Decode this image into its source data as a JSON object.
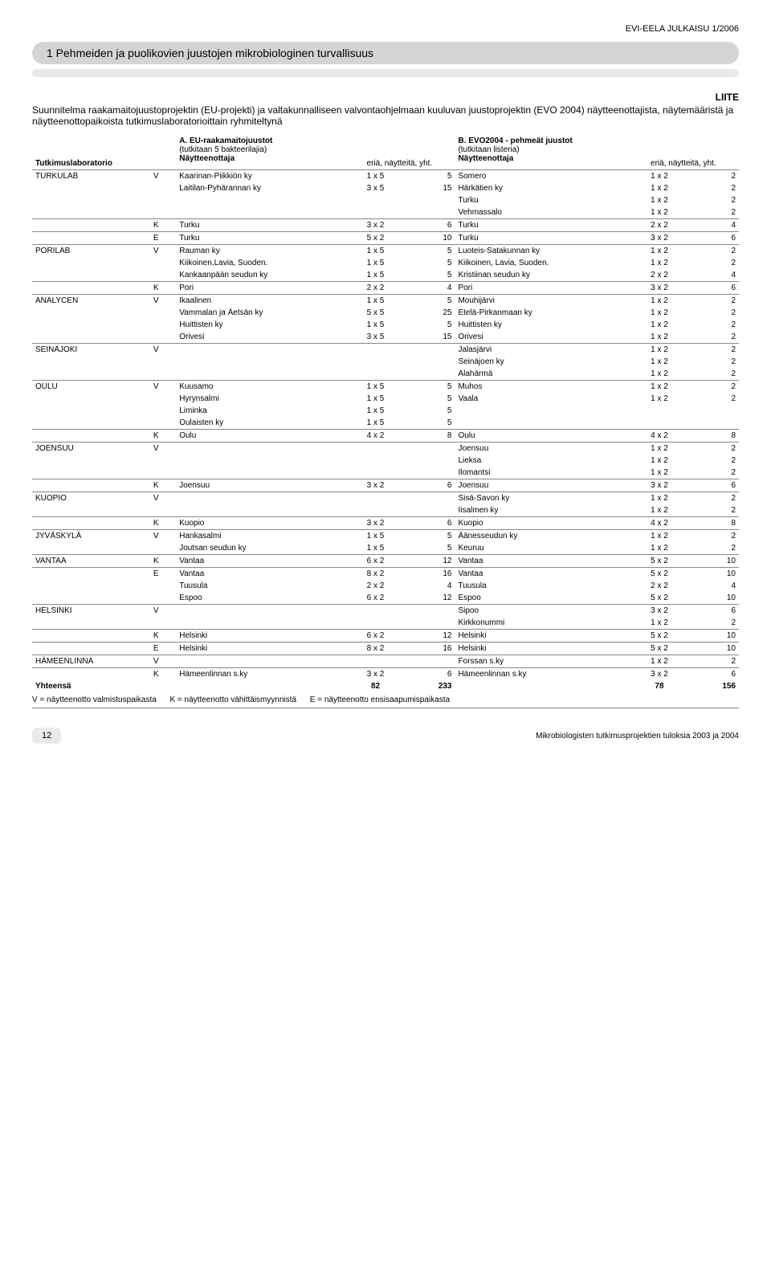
{
  "pub_header": "EVI-EELA JULKAISU 1/2006",
  "title": "1 Pehmeiden ja puolikovien juustojen mikrobiologinen turvallisuus",
  "colors": {
    "title_bg": "#d6d4d2",
    "underline_bg": "#eceae8",
    "pagebox_bg": "#eceae8"
  },
  "liite": "LIITE",
  "intro": "Suunnitelma raakamaitojuustoprojektin (EU-projekti) ja valtakunnalliseen valvontaohjelmaan kuuluvan juustoprojektin (EVO 2004) näytteenottajista, näytemääristä ja näytteenottopaikoista tutkimuslaboratorioittain ryhmiteltynä",
  "col_header": {
    "lab": "Tutkimuslaboratorio",
    "a_title": "A.  EU-raakamaitojuustot",
    "a_sub": "(tutkitaan 5 bakteerilajia)",
    "a_taker": "Näytteenottaja",
    "eria": "eriä, näytteitä, yht.",
    "b_title": "B.  EVO2004 - pehmeät juustot",
    "b_sub": "(tutkitaan listeria)",
    "b_taker": "Näytteenottaja"
  },
  "sections": [
    {
      "lab": "TURKULAB",
      "groups": [
        {
          "code": "V",
          "a": [
            [
              "Kaarinan-Piikkiön ky",
              "1 x 5",
              "5"
            ],
            [
              "Laitilan-Pyhärannan ky",
              "3 x 5",
              "15"
            ]
          ],
          "b": [
            [
              "Somero",
              "1 x 2",
              "2"
            ],
            [
              "Härkätien ky",
              "1 x 2",
              "2"
            ],
            [
              "Turku",
              "1 x 2",
              "2"
            ],
            [
              "Vehmassalo",
              "1 x 2",
              "2"
            ]
          ]
        },
        {
          "code": "K",
          "a": [
            [
              "Turku",
              "3 x 2",
              "6"
            ]
          ],
          "b": [
            [
              "Turku",
              "2 x 2",
              "4"
            ]
          ]
        },
        {
          "code": "E",
          "a": [
            [
              "Turku",
              "5 x 2",
              "10"
            ]
          ],
          "b": [
            [
              "Turku",
              "3 x 2",
              "6"
            ]
          ]
        }
      ]
    },
    {
      "lab": "PORILAB",
      "groups": [
        {
          "code": "V",
          "a": [
            [
              "Rauman ky",
              "1 x 5",
              "5"
            ],
            [
              "Kiikoinen,Lavia, Suoden.",
              "1 x 5",
              "5"
            ],
            [
              "Kankaanpään seudun ky",
              "1 x 5",
              "5"
            ]
          ],
          "b": [
            [
              "Luoteis-Satakunnan ky",
              "1 x 2",
              "2"
            ],
            [
              "Kiikoinen, Lavia, Suoden.",
              "1 x 2",
              "2"
            ],
            [
              "Kristiinan seudun ky",
              "2 x 2",
              "4"
            ]
          ]
        },
        {
          "code": "K",
          "a": [
            [
              "Pori",
              "2 x 2",
              "4"
            ]
          ],
          "b": [
            [
              "Pori",
              "3 x 2",
              "6"
            ]
          ]
        }
      ]
    },
    {
      "lab": "ANALYCEN",
      "groups": [
        {
          "code": "V",
          "a": [
            [
              "Ikaalinen",
              "1 x 5",
              "5"
            ],
            [
              "Vammalan ja Äetsän ky",
              "5 x 5",
              "25"
            ],
            [
              "Huittisten ky",
              "1 x 5",
              "5"
            ],
            [
              "Orivesi",
              "3 x 5",
              "15"
            ]
          ],
          "b": [
            [
              "Mouhijärvi",
              "1 x 2",
              "2"
            ],
            [
              "Etelä-Pirkanmaan ky",
              "1 x 2",
              "2"
            ],
            [
              "Huittisten ky",
              "1 x 2",
              "2"
            ],
            [
              "Orivesi",
              "1 x 2",
              "2"
            ]
          ]
        }
      ]
    },
    {
      "lab": "SEINÄJOKI",
      "groups": [
        {
          "code": "V",
          "a": [],
          "b": [
            [
              "Jalasjärvi",
              "1 x 2",
              "2"
            ],
            [
              "Seinäjoen ky",
              "1 x 2",
              "2"
            ],
            [
              "Alahärmä",
              "1 x 2",
              "2"
            ]
          ]
        }
      ]
    },
    {
      "lab": "OULU",
      "groups": [
        {
          "code": "V",
          "a": [
            [
              "Kuusamo",
              "1 x 5",
              "5"
            ],
            [
              "Hyrynsalmi",
              "1 x 5",
              "5"
            ],
            [
              "Liminka",
              "1 x 5",
              "5"
            ],
            [
              "Oulaisten ky",
              "1 x 5",
              "5"
            ]
          ],
          "b": [
            [
              "Muhos",
              "1 x 2",
              "2"
            ],
            [
              "Vaala",
              "1 x 2",
              "2"
            ]
          ]
        },
        {
          "code": "K",
          "a": [
            [
              "Oulu",
              "4 x 2",
              "8"
            ]
          ],
          "b": [
            [
              "Oulu",
              "4 x 2",
              "8"
            ]
          ]
        }
      ]
    },
    {
      "lab": "JOENSUU",
      "groups": [
        {
          "code": "V",
          "a": [],
          "b": [
            [
              "Joensuu",
              "1 x 2",
              "2"
            ],
            [
              "Lieksa",
              "1 x 2",
              "2"
            ],
            [
              "Ilomantsi",
              "1 x 2",
              "2"
            ]
          ]
        },
        {
          "code": "K",
          "a": [
            [
              "Joensuu",
              "3 x 2",
              "6"
            ]
          ],
          "b": [
            [
              "Joensuu",
              "3 x 2",
              "6"
            ]
          ]
        }
      ]
    },
    {
      "lab": "KUOPIO",
      "groups": [
        {
          "code": "V",
          "a": [],
          "b": [
            [
              "Sisä-Savon ky",
              "1 x 2",
              "2"
            ],
            [
              "Iisalmen ky",
              "1 x 2",
              "2"
            ]
          ]
        },
        {
          "code": "K",
          "a": [
            [
              "Kuopio",
              "3 x 2",
              "6"
            ]
          ],
          "b": [
            [
              "Kuopio",
              "4 x 2",
              "8"
            ]
          ]
        }
      ]
    },
    {
      "lab": "JYVÄSKYLÄ",
      "groups": [
        {
          "code": "V",
          "a": [
            [
              "Hankasalmi",
              "1 x 5",
              "5"
            ],
            [
              "Joutsan seudun ky",
              "1 x 5",
              "5"
            ]
          ],
          "b": [
            [
              "Äänesseudun ky",
              "1 x 2",
              "2"
            ],
            [
              "Keuruu",
              "1 x 2",
              "2"
            ]
          ]
        }
      ]
    },
    {
      "lab": "VANTAA",
      "groups": [
        {
          "code": "K",
          "a": [
            [
              "Vantaa",
              "6 x 2",
              "12"
            ]
          ],
          "b": [
            [
              "Vantaa",
              "5 x 2",
              "10"
            ]
          ]
        },
        {
          "code": "E",
          "a": [
            [
              "Vantaa",
              "8 x 2",
              "16"
            ],
            [
              "Tuusula",
              "2 x 2",
              "4"
            ],
            [
              "Espoo",
              "6 x 2",
              "12"
            ]
          ],
          "b": [
            [
              "Vantaa",
              "5 x 2",
              "10"
            ],
            [
              "Tuusula",
              "2 x 2",
              "4"
            ],
            [
              "Espoo",
              "5 x 2",
              "10"
            ]
          ]
        }
      ]
    },
    {
      "lab": "HELSINKI",
      "groups": [
        {
          "code": "V",
          "a": [],
          "b": [
            [
              "Sipoo",
              "3 x 2",
              "6"
            ],
            [
              "Kirkkonummi",
              "1 x 2",
              "2"
            ]
          ]
        },
        {
          "code": "K",
          "a": [
            [
              "Helsinki",
              "6 x 2",
              "12"
            ]
          ],
          "b": [
            [
              "Helsinki",
              "5 x 2",
              "10"
            ]
          ]
        },
        {
          "code": "E",
          "a": [
            [
              "Helsinki",
              "8 x 2",
              "16"
            ]
          ],
          "b": [
            [
              "Helsinki",
              "5 x 2",
              "10"
            ]
          ]
        }
      ]
    },
    {
      "lab": "HÄMEENLINNA",
      "groups": [
        {
          "code": "V",
          "a": [],
          "b": [
            [
              "Forssan s.ky",
              "1 x 2",
              "2"
            ]
          ]
        },
        {
          "code": "K",
          "a": [
            [
              "Hämeenlinnan s.ky",
              "3 x 2",
              "6"
            ]
          ],
          "b": [
            [
              "Hämeenlinnan s.ky",
              "3 x 2",
              "6"
            ]
          ]
        }
      ]
    }
  ],
  "totals": {
    "label": "Yhteensä",
    "a_eria": "82",
    "a_yht": "233",
    "b_eria": "78",
    "b_yht": "156"
  },
  "legend": {
    "v": "V = näytteenotto valmistuspaikasta",
    "k": "K = näytteenotto vähittäismyynnistä",
    "e": "E = näytteenotto ensisaapumispaikasta"
  },
  "page_num": "12",
  "footer_text": "Mikrobiologisten tutkimusprojektien tuloksia 2003 ja 2004"
}
